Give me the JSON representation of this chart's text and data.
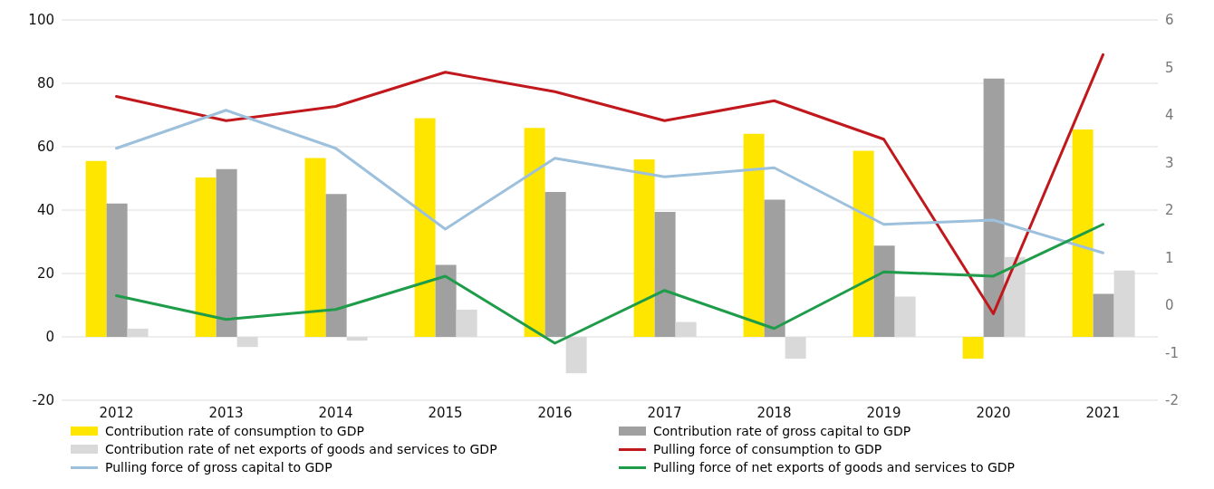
{
  "chart_data": {
    "type": "bar",
    "categories": [
      "2012",
      "2013",
      "2014",
      "2015",
      "2016",
      "2017",
      "2018",
      "2019",
      "2020",
      "2021"
    ],
    "series": [
      {
        "name": "Contribution rate of consumption to GDP",
        "color": "#ffe600",
        "values": [
          55.5,
          50.3,
          56.4,
          69,
          65.9,
          56,
          64.1,
          58.7,
          -6.9,
          65.4
        ]
      },
      {
        "name": "Contribution rate of gross capital to GDP",
        "color": "#a0a0a0",
        "values": [
          42.1,
          52.9,
          45.1,
          22.7,
          45.7,
          39.4,
          43.3,
          28.8,
          81.5,
          13.6
        ]
      },
      {
        "name": "Contribution rate of net exports of goods and services to GDP",
        "color": "#d9d9d9",
        "values": [
          2.6,
          -3.2,
          -1.2,
          8.6,
          -11.5,
          4.7,
          -6.9,
          12.7,
          25.2,
          20.9
        ]
      },
      {
        "name": "Pulling force of consumption to GDP",
        "type": "line",
        "axis": "y2",
        "color": "#c0181c",
        "values": [
          4.39,
          3.88,
          4.18,
          4.9,
          4.49,
          3.88,
          4.3,
          3.49,
          -0.18,
          5.27
        ]
      },
      {
        "name": "Pulling force of gross capital to GDP",
        "type": "line",
        "axis": "y2",
        "color": "#9dc0dc",
        "values": [
          3.3,
          4.1,
          3.3,
          1.6,
          3.09,
          2.7,
          2.89,
          1.7,
          1.79,
          1.1
        ]
      },
      {
        "name": "Pulling force of net exports of goods and services to GDP",
        "type": "line",
        "axis": "y2",
        "color": "#1f9c4a",
        "values": [
          0.2,
          -0.3,
          -0.09,
          0.61,
          -0.8,
          0.31,
          -0.49,
          0.7,
          0.61,
          1.7
        ]
      }
    ],
    "ylim": [
      -20,
      100
    ],
    "yticks": [
      -20,
      0,
      20,
      40,
      60,
      80,
      100
    ],
    "y2lim": [
      -2,
      6
    ],
    "y2ticks": [
      -2,
      -1,
      0,
      1,
      2,
      3,
      4,
      5,
      6
    ],
    "grid": "y",
    "legend": "bottom",
    "marker": "none",
    "line_style": "solid"
  }
}
